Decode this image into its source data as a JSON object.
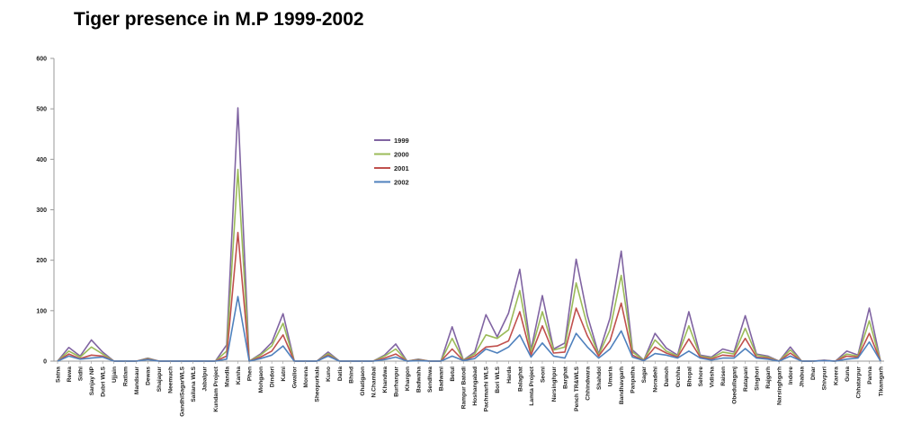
{
  "title": "Tiger presence in M.P 1999-2002",
  "chart_data": {
    "type": "line",
    "title": "Tiger presence in M.P 1999-2002",
    "xlabel": "",
    "ylabel": "",
    "ylim": [
      0,
      600
    ],
    "yticks": [
      0,
      100,
      200,
      300,
      400,
      500,
      600
    ],
    "grid": false,
    "legend_position": "center",
    "categories": [
      "Satna",
      "Rewa",
      "Sidhi",
      "Sanjay NP",
      "Dubri WLS",
      "Ujjain",
      "Ratlam",
      "Mandsaur",
      "Dewas",
      "Shajapur",
      "Neemuch",
      "GandhiSagarWLS",
      "Sailana WLS",
      "Jabalpur",
      "Kundam Project",
      "Mandla",
      "Kanha",
      "Phen",
      "Mohgaon",
      "Dindori",
      "Katni",
      "Gwalior",
      "Morena",
      "Sheopurkala",
      "Kuno",
      "Datia",
      "Bhind",
      "Ghatigaon",
      "N.Chambal",
      "Khandwa",
      "Burhanpur",
      "Khargon",
      "Badwaha",
      "Sendhwa",
      "Badwani",
      "Betul",
      "Rampur Batodi",
      "Hoshangabad",
      "Pachmarhi WLS",
      "Bori WLS",
      "Harda",
      "Balaghat",
      "Lamta Project",
      "Seoni",
      "Narsinghpur",
      "Barghat",
      "Pench TR&WLS",
      "Chhindwara",
      "Shahdol",
      "Umaria",
      "Bandhavgarh",
      "Panpatha",
      "Sagar",
      "Noradehi",
      "Damoh",
      "Orchha",
      "Bhopal",
      "Sehore",
      "Vidisha",
      "Raisen",
      "Obedullaganj",
      "Ratapani",
      "Singhori",
      "Rajgarh",
      "Narsinghgarh",
      "Indore",
      "Jhabua",
      "Dhar",
      "Shivpuri",
      "Karera",
      "Guna",
      "Chhatarpur",
      "Panna",
      "Tikamgarh"
    ],
    "series": [
      {
        "name": "1999",
        "color": "#8064A2",
        "values": [
          0,
          27,
          10,
          42,
          18,
          0,
          0,
          0,
          6,
          0,
          0,
          0,
          0,
          0,
          0,
          32,
          502,
          0,
          14,
          37,
          94,
          0,
          0,
          0,
          18,
          0,
          0,
          0,
          0,
          12,
          34,
          0,
          4,
          0,
          0,
          68,
          2,
          18,
          92,
          48,
          95,
          182,
          22,
          130,
          24,
          36,
          202,
          90,
          14,
          85,
          218,
          22,
          2,
          55,
          26,
          12,
          98,
          12,
          8,
          24,
          18,
          90,
          14,
          10,
          0,
          28,
          0,
          0,
          2,
          0,
          20,
          12,
          105,
          0
        ]
      },
      {
        "name": "2000",
        "color": "#9BBB59",
        "values": [
          0,
          20,
          8,
          28,
          14,
          0,
          0,
          0,
          5,
          0,
          0,
          0,
          0,
          0,
          0,
          20,
          380,
          0,
          12,
          30,
          75,
          0,
          0,
          0,
          15,
          0,
          0,
          0,
          0,
          10,
          24,
          0,
          3,
          0,
          0,
          45,
          2,
          14,
          52,
          45,
          62,
          140,
          18,
          98,
          22,
          28,
          155,
          70,
          12,
          62,
          170,
          18,
          2,
          42,
          20,
          10,
          70,
          10,
          6,
          18,
          14,
          65,
          12,
          8,
          0,
          22,
          0,
          0,
          1,
          0,
          14,
          10,
          80,
          0
        ]
      },
      {
        "name": "2001",
        "color": "#C0504D",
        "values": [
          0,
          14,
          5,
          12,
          10,
          0,
          0,
          0,
          4,
          0,
          0,
          0,
          0,
          0,
          0,
          10,
          255,
          0,
          8,
          20,
          52,
          0,
          0,
          0,
          12,
          0,
          0,
          0,
          0,
          6,
          14,
          0,
          2,
          0,
          0,
          24,
          1,
          10,
          28,
          30,
          40,
          98,
          12,
          70,
          16,
          18,
          105,
          50,
          10,
          40,
          115,
          12,
          1,
          28,
          16,
          8,
          44,
          8,
          4,
          12,
          10,
          45,
          8,
          6,
          0,
          16,
          0,
          0,
          1,
          0,
          10,
          8,
          55,
          0
        ]
      },
      {
        "name": "2002",
        "color": "#4F81BD",
        "values": [
          0,
          10,
          4,
          6,
          8,
          0,
          0,
          0,
          3,
          0,
          0,
          0,
          0,
          0,
          0,
          4,
          128,
          0,
          5,
          12,
          30,
          0,
          0,
          0,
          10,
          0,
          0,
          0,
          0,
          3,
          8,
          0,
          1,
          0,
          0,
          10,
          1,
          5,
          24,
          16,
          28,
          52,
          8,
          36,
          10,
          6,
          55,
          28,
          6,
          24,
          60,
          8,
          1,
          15,
          12,
          6,
          20,
          6,
          2,
          6,
          6,
          25,
          6,
          4,
          0,
          10,
          0,
          0,
          1,
          0,
          4,
          6,
          38,
          0
        ]
      }
    ]
  }
}
